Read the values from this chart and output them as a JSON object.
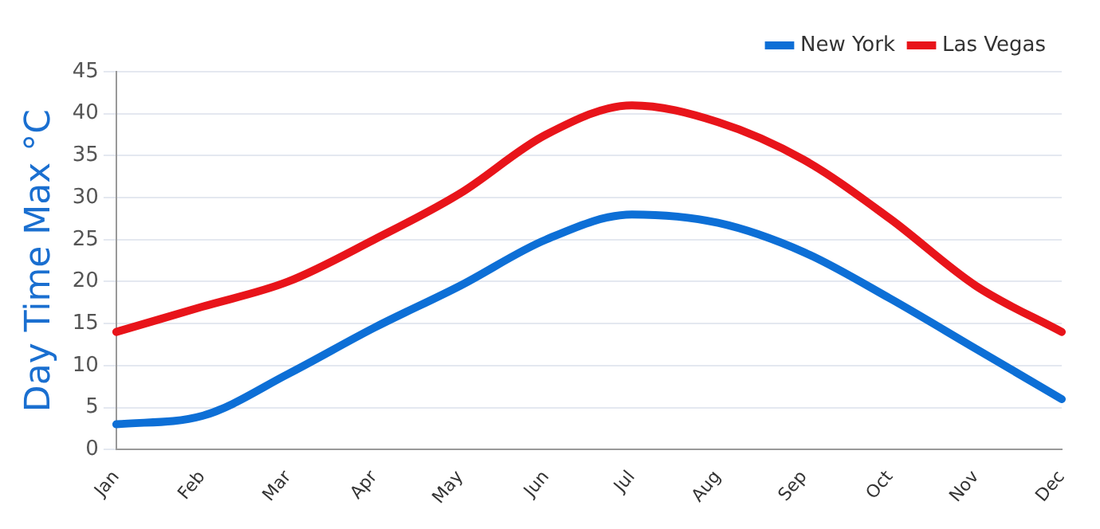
{
  "chart_data": {
    "type": "line",
    "ylabel": "Day Time Max °C",
    "categories": [
      "Jan",
      "Feb",
      "Mar",
      "Apr",
      "May",
      "Jun",
      "Jul",
      "Aug",
      "Sep",
      "Oct",
      "Nov",
      "Dec"
    ],
    "series": [
      {
        "name": "New York",
        "color": "#0d6fd6",
        "values": [
          3,
          4,
          9,
          14.5,
          19.5,
          25,
          28,
          27,
          23.5,
          18,
          12,
          6
        ]
      },
      {
        "name": "Las Vegas",
        "color": "#e8141a",
        "values": [
          14,
          17,
          20,
          25,
          30.5,
          37.5,
          41,
          39,
          34.5,
          27.5,
          19.5,
          14
        ]
      }
    ],
    "ylim": [
      0,
      45
    ],
    "yticks": [
      0,
      5,
      10,
      15,
      20,
      25,
      30,
      35,
      40,
      45
    ],
    "grid": "y",
    "legend": "top right",
    "marker": "none",
    "line_style": "solid"
  }
}
